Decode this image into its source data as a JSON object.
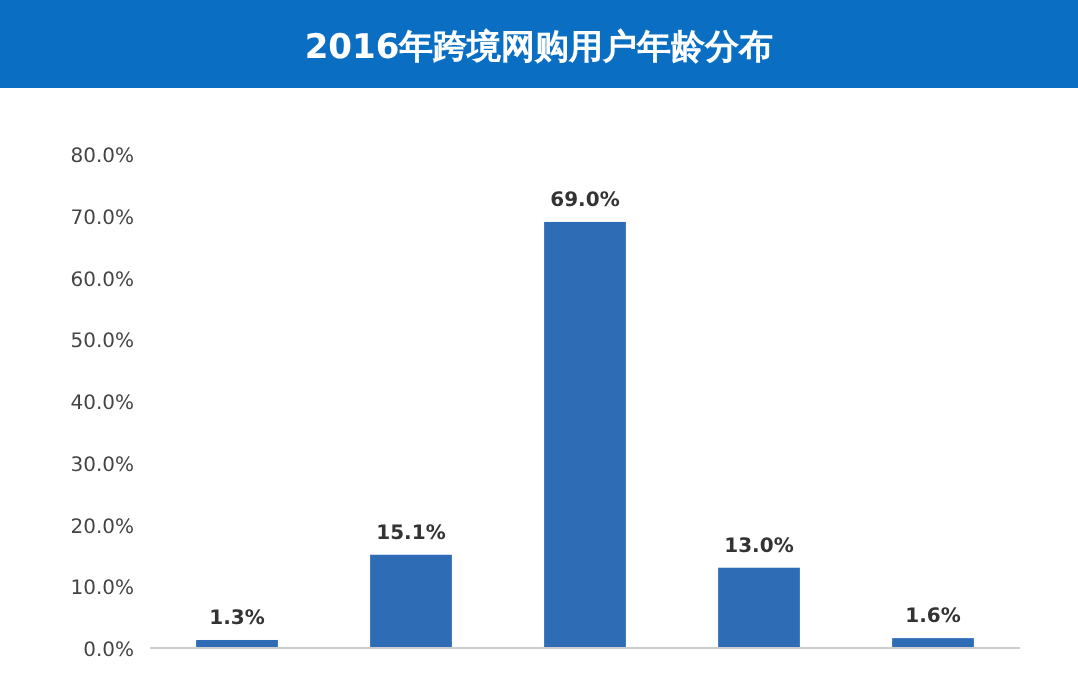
{
  "chart_data": {
    "type": "bar",
    "title": "2016年跨境网购用户年龄分布",
    "categories": [
      null,
      null,
      null,
      null,
      null
    ],
    "values": [
      1.3,
      15.1,
      69.0,
      13.0,
      1.6
    ],
    "value_labels": [
      "1.3%",
      "15.1%",
      "69.0%",
      "13.0%",
      "1.6%"
    ],
    "color": "#2e6db5",
    "ylim": [
      0,
      80
    ],
    "yticks": [
      {
        "value": 0,
        "label": "0.0%"
      },
      {
        "value": 10,
        "label": "10.0%"
      },
      {
        "value": 20,
        "label": "20.0%"
      },
      {
        "value": 30,
        "label": "30.0%"
      },
      {
        "value": 40,
        "label": "40.0%"
      },
      {
        "value": 50,
        "label": "50.0%"
      },
      {
        "value": 60,
        "label": "60.0%"
      },
      {
        "value": 70,
        "label": "70.0%"
      },
      {
        "value": 80,
        "label": "80.0%"
      }
    ],
    "grid": false
  }
}
